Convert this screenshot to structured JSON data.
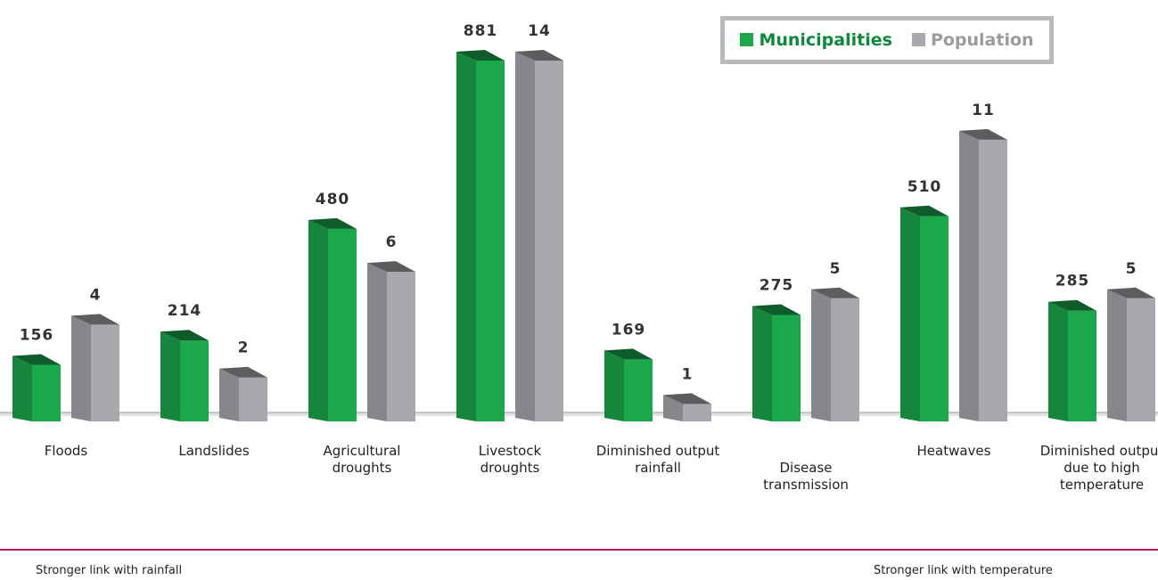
{
  "chart_data": {
    "type": "bar3d",
    "categories": [
      "Floods",
      "Landslides",
      "Agricultural droughts",
      "Livestock droughts",
      "Diminished output rainfall",
      "Disease transmission",
      "Heatwaves",
      "Diminished output due to high temperature"
    ],
    "series": [
      {
        "name": "Municipalities",
        "color": "#1aa84a",
        "values": [
          156,
          214,
          480,
          881,
          169,
          275,
          510,
          285
        ]
      },
      {
        "name": "Population",
        "color": "#a7a9ac",
        "axis": "y2",
        "values": [
          4,
          2,
          6,
          14,
          1,
          5,
          11,
          5
        ]
      }
    ],
    "legend": "top-right",
    "annotations": [
      "Stronger link with rainfall",
      "Stronger link with temperature"
    ]
  }
}
